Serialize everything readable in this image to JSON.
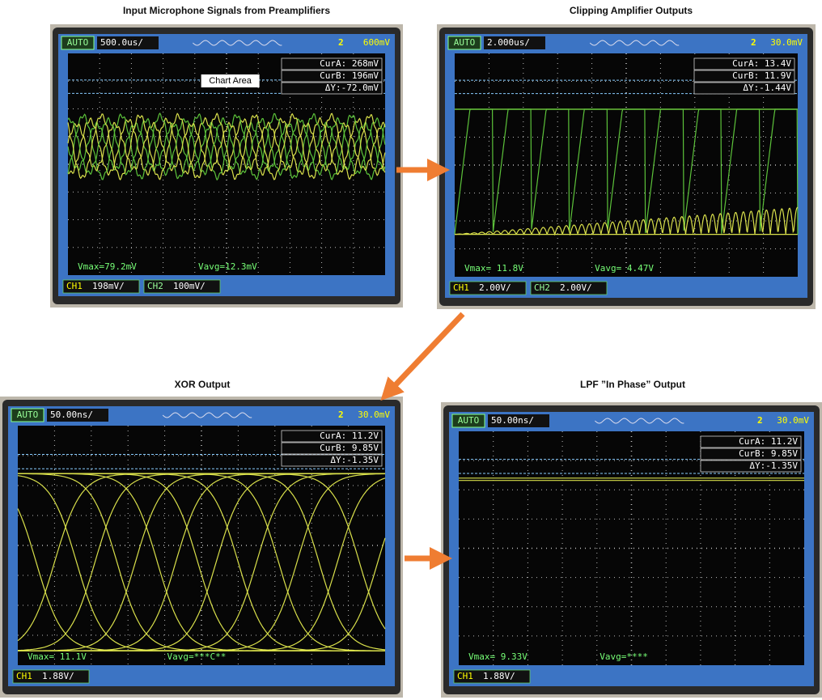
{
  "panels": [
    {
      "title": "Input Microphone Signals from Preamplifiers",
      "mode": "AUTO",
      "timebase": "500.0us/",
      "trigger_channel": "2",
      "trigger": "600mV",
      "cursors": [
        "CurA: 268mV",
        "CurB: 196mV",
        "ΔY:-72.0mV"
      ],
      "measures": [
        "Vmax=79.2mV",
        "Vavg=12.3mV"
      ],
      "channels": [
        {
          "name": "CH1",
          "scale": "198mV/"
        },
        {
          "name": "CH2",
          "scale": "100mV/"
        }
      ],
      "annotation": "Chart Area"
    },
    {
      "title": "Clipping Amplifier Outputs",
      "mode": "AUTO",
      "timebase": "2.000us/",
      "trigger_channel": "2",
      "trigger": "30.0mV",
      "cursors": [
        "CurA: 13.4V",
        "CurB: 11.9V",
        "ΔY:-1.44V"
      ],
      "measures": [
        "Vmax= 11.8V",
        "Vavg= 4.47V"
      ],
      "channels": [
        {
          "name": "CH1",
          "scale": "2.00V/"
        },
        {
          "name": "CH2",
          "scale": "2.00V/"
        }
      ]
    },
    {
      "title": "XOR Output",
      "mode": "AUTO",
      "timebase": "50.00ns/",
      "trigger_channel": "2",
      "trigger": "30.0mV",
      "cursors": [
        "CurA: 11.2V",
        "CurB: 9.85V",
        "ΔY:-1.35V"
      ],
      "measures": [
        "Vmax= 11.1V",
        "Vavg=***C**"
      ],
      "channels": [
        {
          "name": "CH1",
          "scale": "1.88V/"
        }
      ]
    },
    {
      "title": "LPF ”In Phase” Output",
      "mode": "AUTO",
      "timebase": "50.00ns/",
      "trigger_channel": "2",
      "trigger": "30.0mV",
      "cursors": [
        "CurA: 11.2V",
        "CurB: 9.85V",
        "ΔY:-1.35V"
      ],
      "measures": [
        "Vmax= 9.33V",
        "Vavg=****"
      ],
      "channels": [
        {
          "name": "CH1",
          "scale": "1.88V/"
        }
      ]
    }
  ]
}
